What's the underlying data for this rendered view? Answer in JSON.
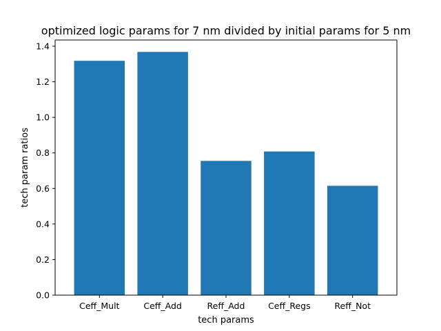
{
  "chart_data": {
    "type": "bar",
    "title": "optimized logic params for 7 nm divided by initial params for 5 nm",
    "xlabel": "tech params",
    "ylabel": "tech param ratios",
    "categories": [
      "Ceff_Mult",
      "Ceff_Add",
      "Reff_Add",
      "Ceff_Regs",
      "Reff_Not"
    ],
    "values": [
      1.318,
      1.368,
      0.755,
      0.808,
      0.615
    ],
    "ylim": [
      0,
      1.435
    ],
    "yticks": [
      "0.0",
      "0.2",
      "0.4",
      "0.6",
      "0.8",
      "1.0",
      "1.2",
      "1.4"
    ],
    "grid": false,
    "bar_color": "#1f77b4"
  }
}
